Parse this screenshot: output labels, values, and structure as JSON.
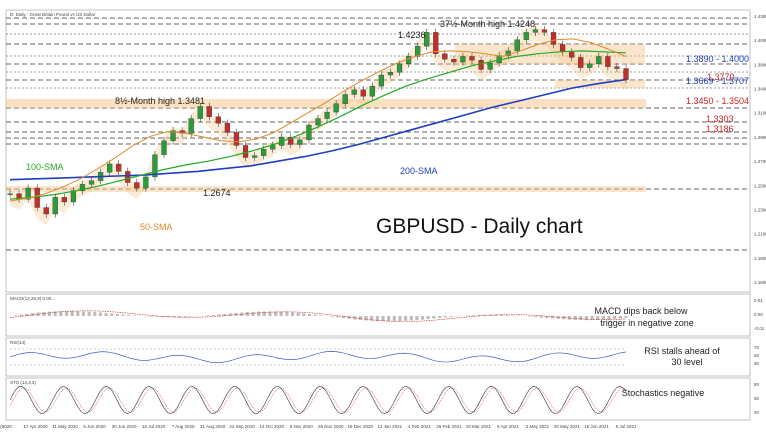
{
  "chart_data": {
    "type": "line",
    "header": "D: Daily : Great Britain Pound vs US Dollar",
    "title": "GBPUSD - Daily chart",
    "price_range": [
      1.14,
      1.44
    ],
    "x_ticks": [
      "(8020",
      "17 Apr 2020",
      "11 May 2020",
      "5 Jun 2020",
      "30 Jun 2020",
      "16 Jul 2020",
      "7 Aug 2020",
      "31 Aug 2020",
      "22 Sep 2020",
      "14 Oct 2020",
      "5 Nov 2020",
      "26 Nov 2020",
      "18 Dec 2020",
      "13 Jan 2021",
      "4 Feb 2021",
      "26 Feb 2021",
      "19 Mar 2021",
      "9 Apr 2021",
      "3 May 2021",
      "20 May 2021",
      "15 Jun 2021",
      "5 Jul 2021"
    ],
    "price_ticks": [
      "1.4300",
      "1.4000",
      "1.3800",
      "1.3400",
      "1.3100",
      "1.2900",
      "1.2700",
      "1.2500",
      "1.2300",
      "1.2100",
      "1.1800",
      "1.1600"
    ],
    "levels": [
      {
        "label": "1.3890 - 1.4000",
        "color": "#1f3fbf"
      },
      {
        "label": "1.3770",
        "color": "#cc2222"
      },
      {
        "label": "1.3669 - 1.3707",
        "color": "#1f3fbf"
      },
      {
        "label": "1.3450 - 1.3504",
        "color": "#cc2222"
      },
      {
        "label": "1.3303",
        "color": "#cc2222"
      },
      {
        "label": "1.3186",
        "color": "#cc2222"
      }
    ],
    "annotations": {
      "high_4236": "1.4236",
      "month_high_4248": "37½-Month high 1.4248",
      "month_high_3481": "8½-Month high 1.3481",
      "low_2674": "1.2674",
      "sma100": "100-SMA",
      "sma50": "50-SMA",
      "sma200": "200-SMA"
    },
    "price_series": [
      1.244,
      1.238,
      1.25,
      1.229,
      1.222,
      1.24,
      1.235,
      1.247,
      1.254,
      1.258,
      1.267,
      1.276,
      1.268,
      1.256,
      1.25,
      1.262,
      1.286,
      1.301,
      1.312,
      1.309,
      1.325,
      1.338,
      1.327,
      1.32,
      1.31,
      1.296,
      1.283,
      1.285,
      1.292,
      1.296,
      1.305,
      1.297,
      1.302,
      1.318,
      1.325,
      1.332,
      1.341,
      1.351,
      1.356,
      1.349,
      1.36,
      1.372,
      1.375,
      1.384,
      1.392,
      1.403,
      1.418,
      1.395,
      1.389,
      1.386,
      1.392,
      1.388,
      1.378,
      1.385,
      1.393,
      1.398,
      1.41,
      1.418,
      1.421,
      1.418,
      1.405,
      1.397,
      1.391,
      1.38,
      1.384,
      1.392,
      1.381,
      1.379,
      1.367
    ],
    "sma200_series": [
      1.259,
      1.26,
      1.261,
      1.262,
      1.263,
      1.264,
      1.266,
      1.268,
      1.271,
      1.274,
      1.279,
      1.284,
      1.29,
      1.297,
      1.305,
      1.313,
      1.321,
      1.329,
      1.337,
      1.344,
      1.351,
      1.358,
      1.363,
      1.367
    ],
    "sma100_series": [
      1.238,
      1.24,
      1.243,
      1.247,
      1.252,
      1.258,
      1.264,
      1.27,
      1.275,
      1.279,
      1.284,
      1.29,
      1.297,
      1.306,
      1.316,
      1.327,
      1.339,
      1.35,
      1.36,
      1.368,
      1.375,
      1.382,
      1.387,
      1.392,
      1.395,
      1.397,
      1.398,
      1.397,
      1.396
    ],
    "sma50_series": [
      1.236,
      1.239,
      1.244,
      1.251,
      1.26,
      1.271,
      1.283,
      1.296,
      1.306,
      1.311,
      1.309,
      1.305,
      1.301,
      1.3,
      1.303,
      1.31,
      1.321,
      1.332,
      1.343,
      1.355,
      1.366,
      1.376,
      1.385,
      1.392,
      1.397,
      1.398,
      1.397,
      1.395,
      1.392,
      1.398,
      1.405,
      1.41,
      1.411,
      1.407,
      1.4,
      1.392
    ],
    "panels": {
      "macd": {
        "header": "MACD(12,26,9) 0.00...",
        "note": "MACD dips back below trigger in negative zone",
        "ticks": [
          "0.01",
          "0.00",
          "-0.01"
        ]
      },
      "rsi": {
        "header": "RSI(14)",
        "note": "RSI stalls ahead of 30 level",
        "ticks": [
          "70",
          "50",
          "30"
        ]
      },
      "stoch": {
        "header": "STO (14,3,3)",
        "note": "Stochastics negative",
        "ticks": [
          "80",
          "50",
          "20"
        ]
      }
    }
  }
}
